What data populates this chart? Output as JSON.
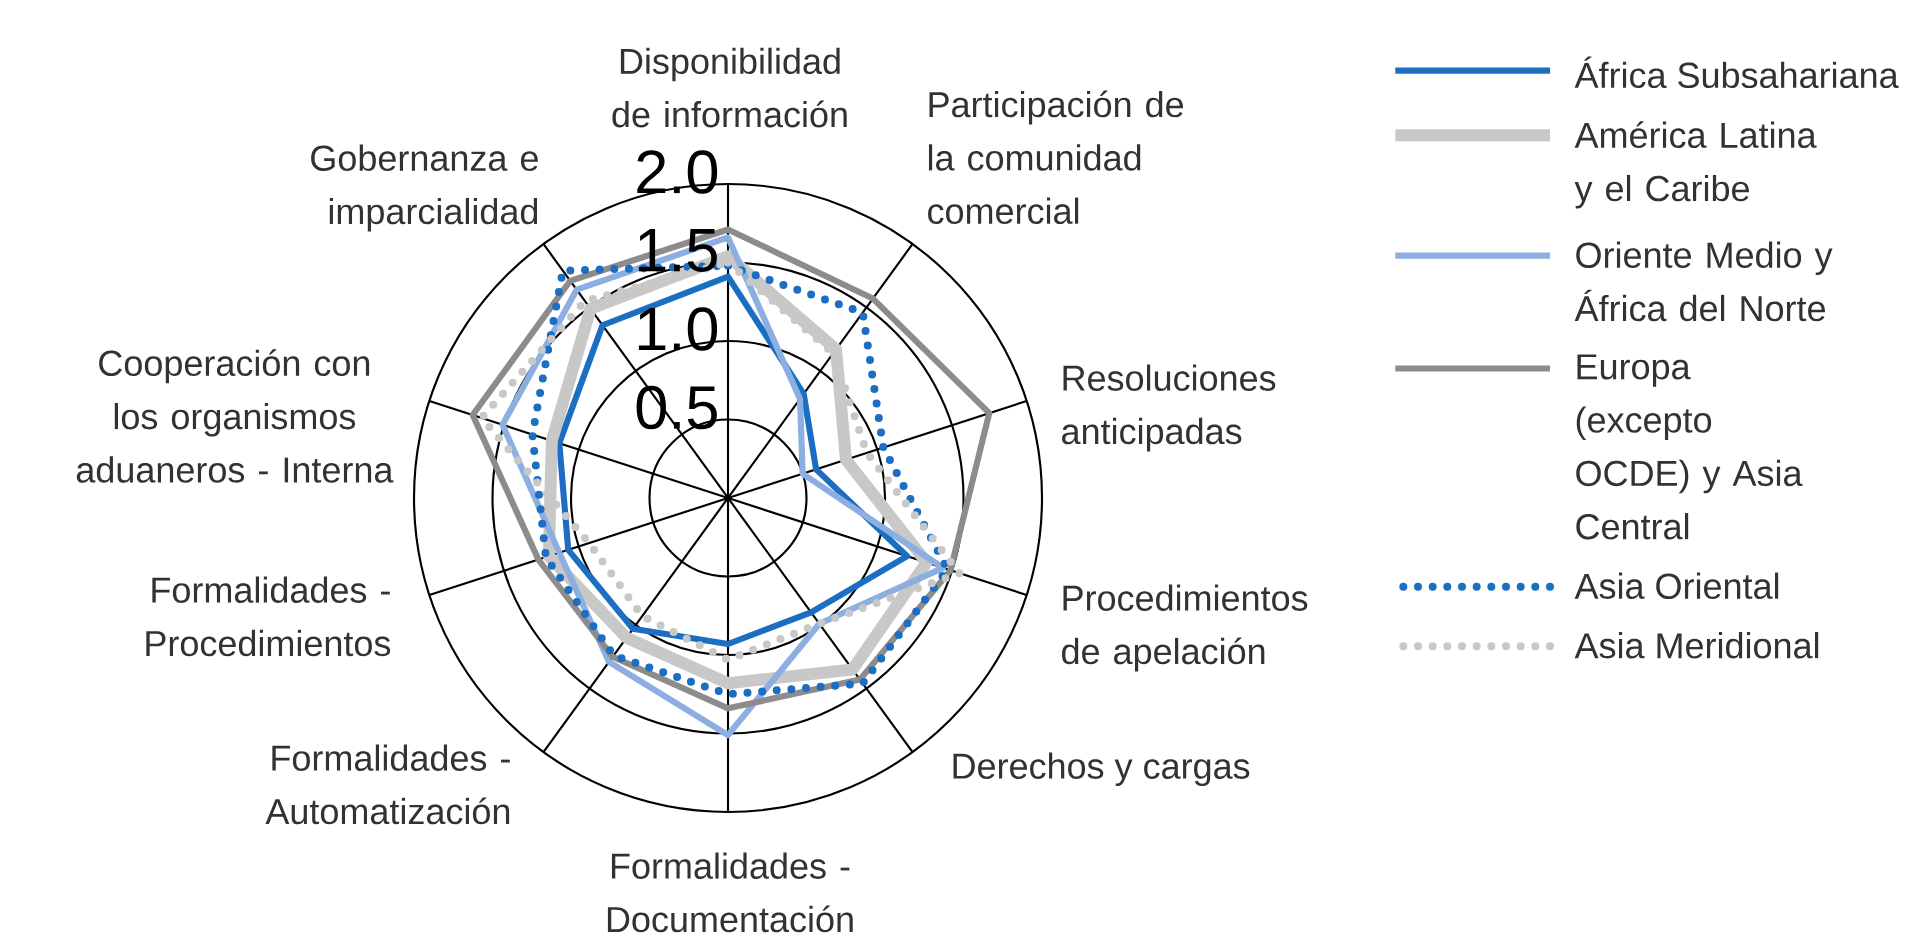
{
  "chart_data": {
    "type": "radar",
    "categories": [
      "Disponibilidad de información",
      "Participación de la comunidad comercial",
      "Resoluciones anticipadas",
      "Procedimientos de apelación",
      "Derechos y cargas",
      "Formalidades - Documentación",
      "Formalidades - Automatización",
      "Formalidades - Procedimientos",
      "Cooperación con los organismos aduaneros - Interna",
      "Gobernanza e imparcialidad"
    ],
    "ylim": [
      0,
      2
    ],
    "yticks": [
      {
        "value": 0.5,
        "label": "0.5"
      },
      {
        "value": 1,
        "label": "1.0"
      },
      {
        "value": 1.5,
        "label": "1.5"
      },
      {
        "value": 2,
        "label": "2.0"
      }
    ],
    "grid": true,
    "legend": "right",
    "series": [
      {
        "name": "África Subsahariana",
        "color": "#1b6ec2",
        "line_style": "solid",
        "values": [
          1.41,
          0.82,
          0.59,
          1.2,
          0.9,
          0.93,
          1.03,
          1.07,
          1.13,
          1.36
        ]
      },
      {
        "name": "América Latina y el Caribe",
        "color": "#c8c8c8",
        "line_style": "solid",
        "values": [
          1.54,
          1.17,
          0.79,
          1.33,
          1.35,
          1.18,
          1.1,
          1.2,
          1.18,
          1.49
        ]
      },
      {
        "name": "Oriente Medio y África del Norte",
        "color": "#8daee0",
        "line_style": "solid",
        "values": [
          1.66,
          0.78,
          0.5,
          1.44,
          0.99,
          1.51,
          1.29,
          1.13,
          1.51,
          1.64
        ]
      },
      {
        "name": "Europa (excepto OCDE) y Asia Central",
        "color": "#8c8c8c",
        "line_style": "solid",
        "values": [
          1.71,
          1.57,
          1.75,
          1.49,
          1.43,
          1.34,
          1.25,
          1.27,
          1.71,
          1.71
        ]
      },
      {
        "name": "Asia Oriental",
        "color": "#1b6ec2",
        "line_style": "dotted",
        "values": [
          1.48,
          1.46,
          1.04,
          1.47,
          1.46,
          1.25,
          1.24,
          1.22,
          1.31,
          1.79
        ]
      },
      {
        "name": "Asia Meridional",
        "color": "#c8c8c8",
        "line_style": "dotted",
        "values": [
          1.5,
          1.14,
          0.93,
          1.55,
          0.99,
          1.03,
          0.93,
          0.93,
          1.65,
          1.55
        ]
      }
    ]
  }
}
